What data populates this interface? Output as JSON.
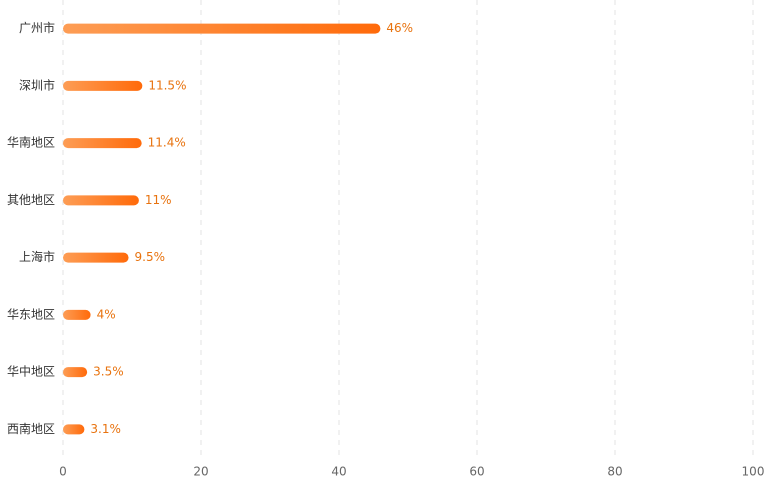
{
  "chart_data": {
    "type": "hbar",
    "categories": [
      "广州市",
      "深圳市",
      "华南地区",
      "其他地区",
      "上海市",
      "华东地区",
      "华中地区",
      "西南地区"
    ],
    "values": [
      46,
      11.5,
      11.4,
      11,
      9.5,
      4,
      3.5,
      3.1
    ],
    "value_labels": [
      "46%",
      "11.5%",
      "11.4%",
      "11%",
      "9.5%",
      "4%",
      "3.5%",
      "3.1%"
    ],
    "color": [
      "#fd9d55",
      "#ff6a0a"
    ],
    "label_color": "#e8730f",
    "xlim": [
      0,
      100
    ],
    "xticks": [
      0,
      20,
      40,
      60,
      80,
      100
    ],
    "grid": true
  }
}
